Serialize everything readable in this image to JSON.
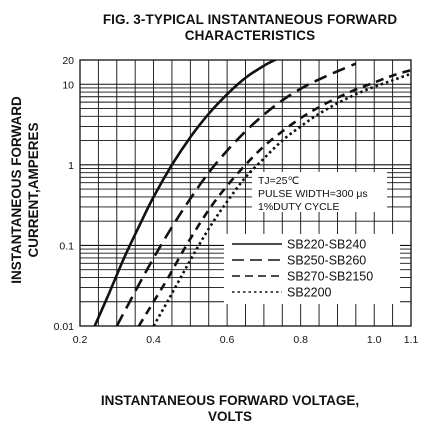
{
  "chart_data": {
    "type": "line",
    "title": [
      "FIG. 3-TYPICAL INSTANTANEOUS FORWARD",
      "CHARACTERISTICS"
    ],
    "xlabel": [
      "INSTANTANEOUS FORWARD VOLTAGE,",
      "VOLTS"
    ],
    "ylabel": [
      "INSTANTANEOUS FORWARD",
      "CURRENT,AMPERES"
    ],
    "x_scale": "linear",
    "y_scale": "log",
    "xlim": [
      0.2,
      1.1
    ],
    "ylim": [
      0.01,
      20
    ],
    "x_ticks": [
      0.2,
      0.4,
      0.6,
      0.8,
      1.0,
      1.1
    ],
    "x_tick_labels": [
      "0.2",
      "0.4",
      "0.6",
      "0.8",
      "1.0",
      "1.1"
    ],
    "y_ticks": [
      0.01,
      0.1,
      1,
      10,
      20
    ],
    "y_tick_labels": [
      "0.01",
      "0.1",
      "1",
      "10",
      "20"
    ],
    "grid": true,
    "annotation": [
      "TJ=25℃",
      "PULSE WIDTH=300 μs",
      "1%DUTY CYCLE"
    ],
    "legend_position": "lower-right",
    "series": [
      {
        "name": "SB220-SB240",
        "style": "solid",
        "x": [
          0.24,
          0.28,
          0.32,
          0.36,
          0.4,
          0.45,
          0.5,
          0.55,
          0.6,
          0.65,
          0.7,
          0.74
        ],
        "y": [
          0.01,
          0.026,
          0.07,
          0.17,
          0.4,
          1.0,
          2.2,
          4.3,
          7.5,
          12,
          17,
          21
        ]
      },
      {
        "name": "SB250-SB260",
        "style": "long-dash",
        "x": [
          0.3,
          0.34,
          0.38,
          0.42,
          0.46,
          0.5,
          0.55,
          0.6,
          0.65,
          0.7,
          0.75,
          0.8,
          0.85,
          0.9,
          0.95
        ],
        "y": [
          0.01,
          0.022,
          0.048,
          0.1,
          0.2,
          0.38,
          0.8,
          1.5,
          2.6,
          4.2,
          6.3,
          8.8,
          11.5,
          14.5,
          18
        ]
      },
      {
        "name": "SB270-SB2150",
        "style": "dash",
        "x": [
          0.36,
          0.4,
          0.44,
          0.48,
          0.52,
          0.56,
          0.6,
          0.65,
          0.7,
          0.75,
          0.8,
          0.85,
          0.9,
          0.95,
          1.0,
          1.05,
          1.1
        ],
        "y": [
          0.01,
          0.02,
          0.04,
          0.085,
          0.17,
          0.32,
          0.55,
          1.0,
          1.7,
          2.6,
          3.8,
          5.2,
          6.8,
          8.6,
          10.5,
          12.8,
          15
        ]
      },
      {
        "name": "SB2200",
        "style": "dotted",
        "x": [
          0.4,
          0.44,
          0.48,
          0.52,
          0.56,
          0.6,
          0.65,
          0.7,
          0.75,
          0.8,
          0.85,
          0.9,
          0.95,
          1.0,
          1.05,
          1.1
        ],
        "y": [
          0.01,
          0.021,
          0.045,
          0.095,
          0.19,
          0.35,
          0.7,
          1.2,
          2.0,
          3.0,
          4.3,
          5.8,
          7.5,
          9.3,
          11.2,
          13.5
        ]
      }
    ]
  }
}
